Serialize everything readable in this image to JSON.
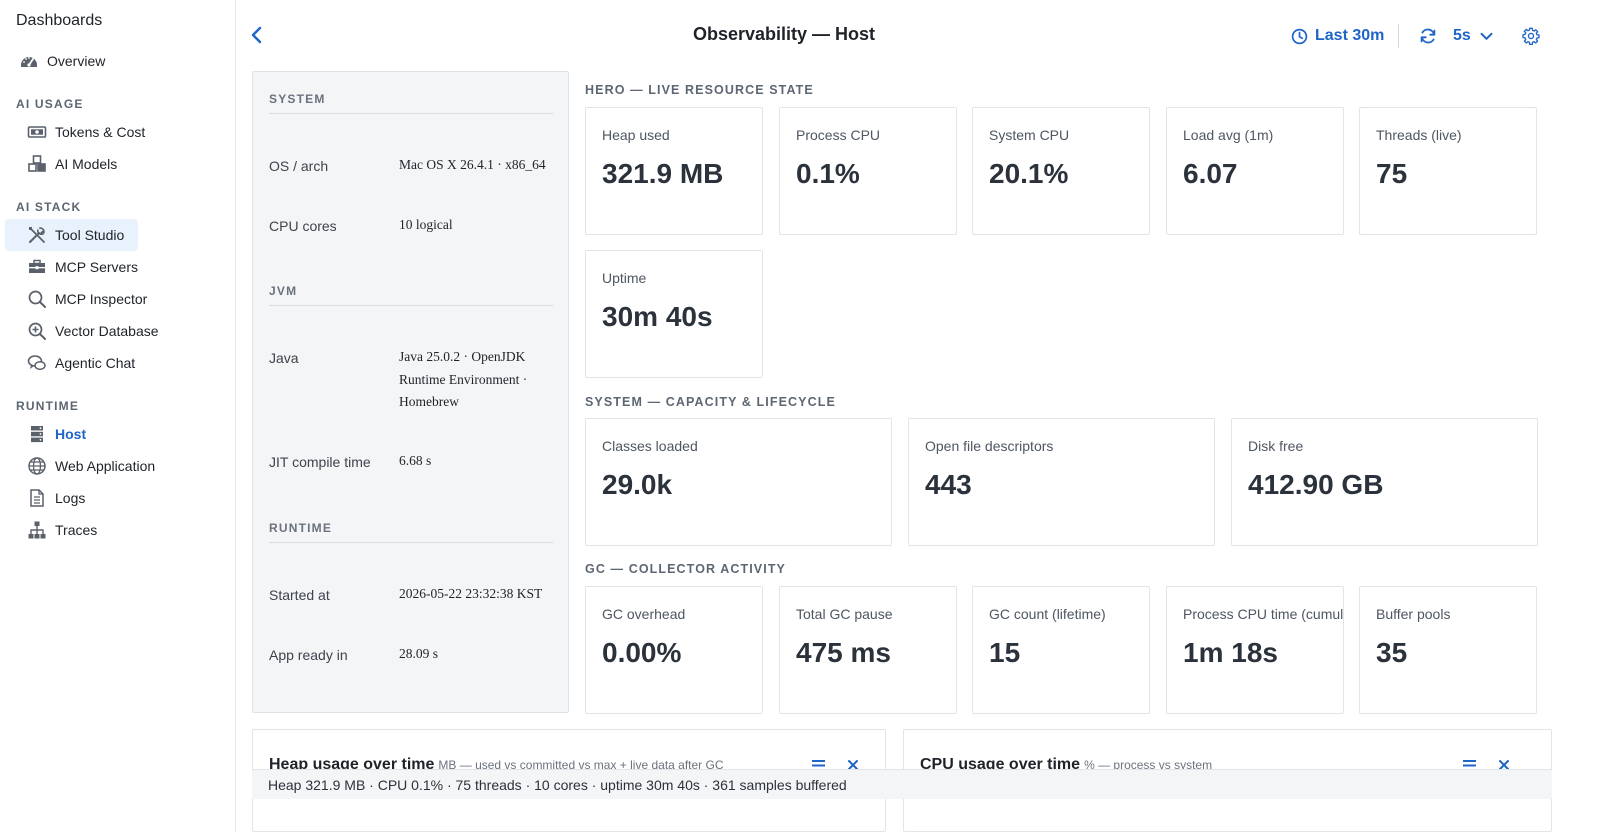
{
  "sidebar": {
    "title": "Dashboards",
    "overview": {
      "label": "Overview",
      "icon": "gauge-icon"
    },
    "sections": {
      "ai_usage": "AI USAGE",
      "ai_stack": "AI STACK",
      "runtime": "RUNTIME"
    },
    "ai_usage_items": [
      {
        "label": "Tokens & Cost",
        "icon": "banknote-icon"
      },
      {
        "label": "AI Models",
        "icon": "cubes-icon"
      }
    ],
    "ai_stack_items": [
      {
        "label": "Tool Studio",
        "icon": "tools-icon",
        "selected": true
      },
      {
        "label": "MCP Servers",
        "icon": "toolbox-icon"
      },
      {
        "label": "MCP Inspector",
        "icon": "search-icon"
      },
      {
        "label": "Vector Database",
        "icon": "zoom-in-icon"
      },
      {
        "label": "Agentic Chat",
        "icon": "chat-icon"
      }
    ],
    "runtime_items": [
      {
        "label": "Host",
        "icon": "server-icon",
        "current": true
      },
      {
        "label": "Web Application",
        "icon": "globe-icon"
      },
      {
        "label": "Logs",
        "icon": "document-icon"
      },
      {
        "label": "Traces",
        "icon": "hierarchy-icon"
      }
    ]
  },
  "header": {
    "title": "Observability — Host",
    "time_range": "Last 30m",
    "refresh_interval": "5s",
    "accent_color": "#1f64c7"
  },
  "info_panel": {
    "system": {
      "title": "SYSTEM",
      "rows": [
        {
          "label": "OS / arch",
          "value": "Mac OS X 26.4.1 · x86_64"
        },
        {
          "label": "CPU cores",
          "value": "10 logical"
        }
      ]
    },
    "jvm": {
      "title": "JVM",
      "rows": [
        {
          "label": "Java",
          "value": "Java 25.0.2 · OpenJDK Runtime Environment · Homebrew"
        },
        {
          "label": "JIT compile time",
          "value": "6.68 s"
        }
      ]
    },
    "runtime": {
      "title": "RUNTIME",
      "rows": [
        {
          "label": "Started at",
          "value": "2026-05-22 23:32:38 KST"
        },
        {
          "label": "App ready in",
          "value": "28.09 s"
        }
      ]
    }
  },
  "hero": {
    "title": "HERO — LIVE RESOURCE STATE",
    "cards": [
      {
        "label": "Heap used",
        "value": "321.9 MB"
      },
      {
        "label": "Process CPU",
        "value": "0.1%"
      },
      {
        "label": "System CPU",
        "value": "20.1%"
      },
      {
        "label": "Load avg (1m)",
        "value": "6.07"
      },
      {
        "label": "Threads (live)",
        "value": "75"
      },
      {
        "label": "Uptime",
        "value": "30m 40s"
      }
    ]
  },
  "capacity": {
    "title": "SYSTEM — CAPACITY & LIFECYCLE",
    "cards": [
      {
        "label": "Classes loaded",
        "value": "29.0k"
      },
      {
        "label": "Open file descriptors",
        "value": "443"
      },
      {
        "label": "Disk free",
        "value": "412.90 GB"
      }
    ]
  },
  "gc": {
    "title": "GC — COLLECTOR ACTIVITY",
    "cards": [
      {
        "label": "GC overhead",
        "value": "0.00%"
      },
      {
        "label": "Total GC pause",
        "value": "475 ms"
      },
      {
        "label": "GC count (lifetime)",
        "value": "15"
      },
      {
        "label": "Process CPU time (cumulative)",
        "value": "1m 18s"
      },
      {
        "label": "Buffer pools",
        "value": "35"
      }
    ]
  },
  "charts": [
    {
      "title": "Heap usage over time",
      "subtitle": "MB — used vs committed vs max + live data after GC"
    },
    {
      "title": "CPU usage over time",
      "subtitle": "% — process vs system"
    }
  ],
  "status_bar": {
    "text": "Heap 321.9 MB · CPU 0.1% · 75 threads · 10 cores · uptime 30m 40s · 361 samples buffered"
  }
}
